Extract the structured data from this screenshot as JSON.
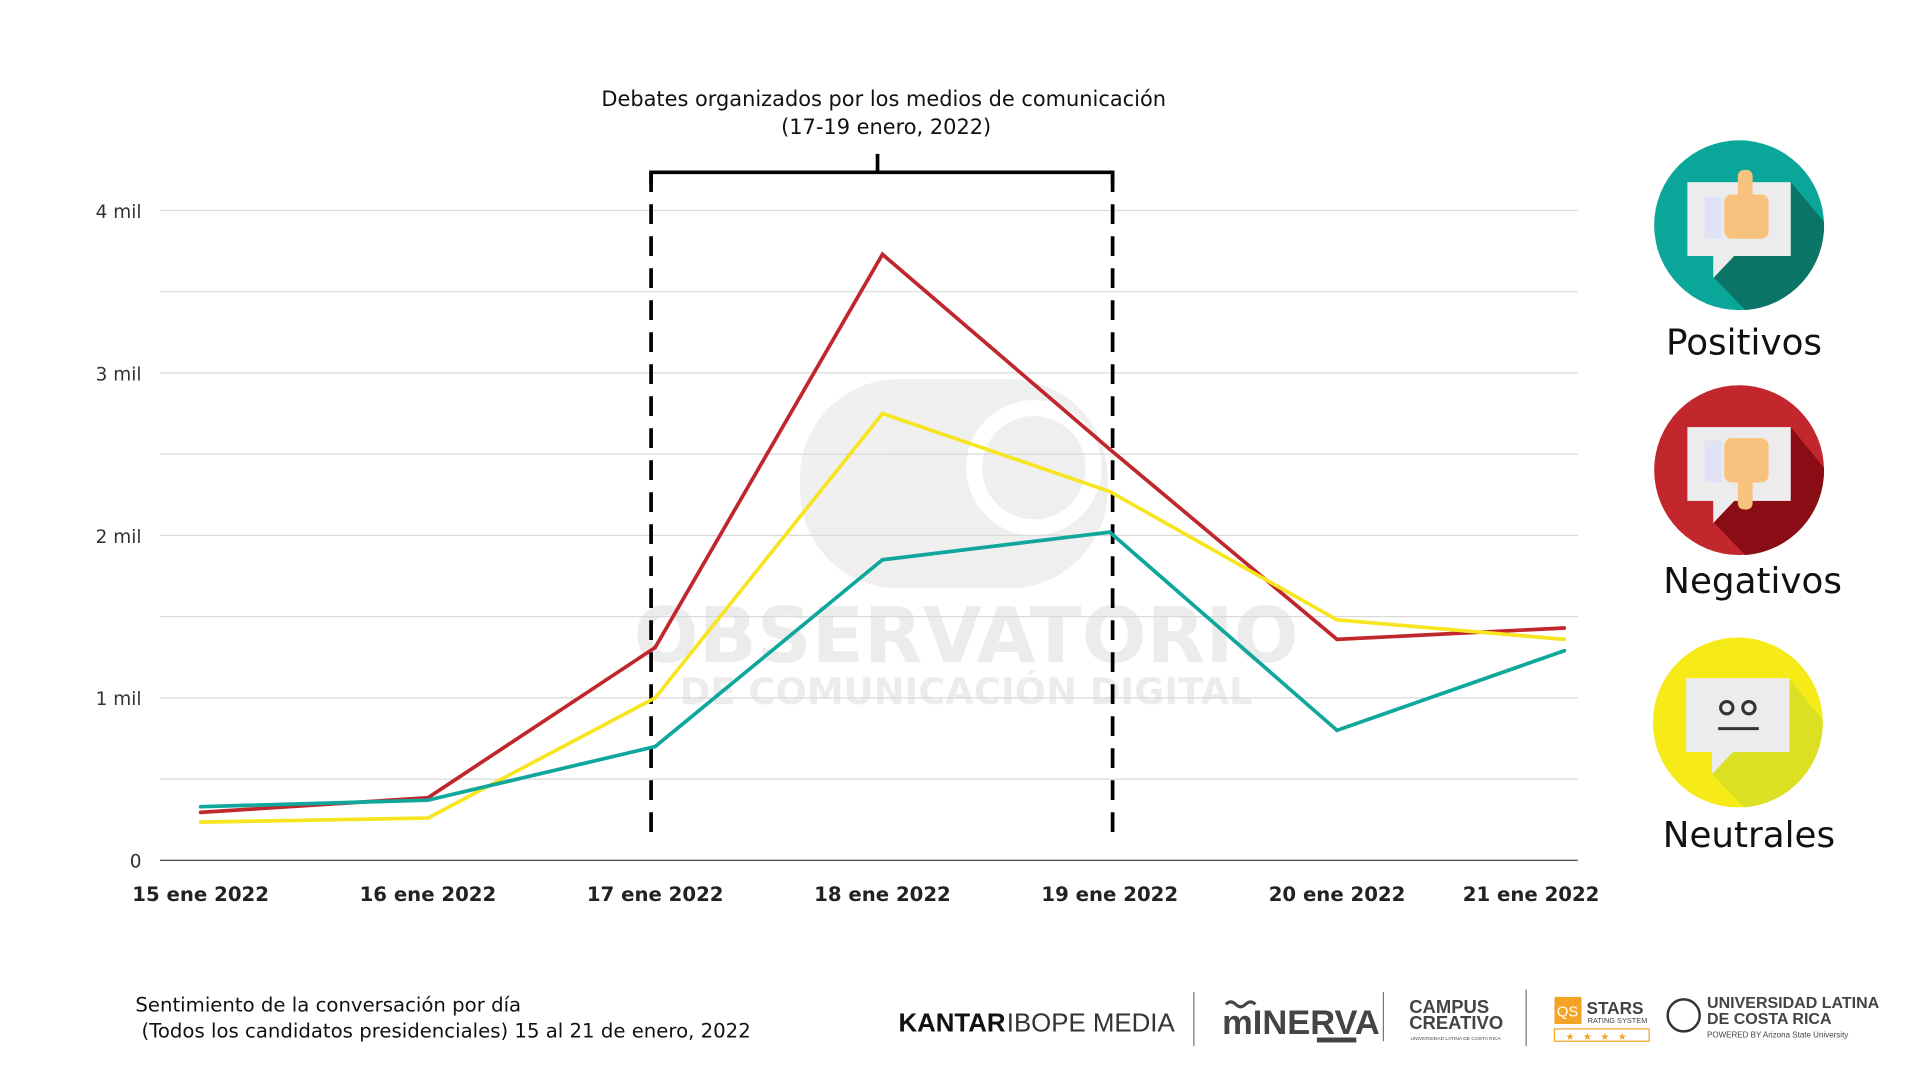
{
  "chart_data": {
    "type": "line",
    "title": "Sentimiento de la conversación por día",
    "subtitle": "(Todos los candidatos presidenciales) 15 al 21 de enero, 2022",
    "xlabel": "",
    "ylabel": "",
    "categories": [
      "15 ene 2022",
      "16 ene 2022",
      "17 ene 2022",
      "18 ene 2022",
      "19 ene 2022",
      "20 ene 2022",
      "21 ene 2022"
    ],
    "ylim": [
      0,
      4000
    ],
    "yticks": [
      {
        "value": 0,
        "label": "0"
      },
      {
        "value": 1000,
        "label": "1 mil"
      },
      {
        "value": 2000,
        "label": "2 mil"
      },
      {
        "value": 3000,
        "label": "3 mil"
      },
      {
        "value": 4000,
        "label": "4 mil"
      }
    ],
    "grid": true,
    "series": [
      {
        "name": "Negativos",
        "color": "#c0272d",
        "values": [
          295,
          385,
          1310,
          3730,
          2530,
          1360,
          1430
        ]
      },
      {
        "name": "Neutrales",
        "color": "#f7e521",
        "values": [
          235,
          260,
          1000,
          2750,
          2270,
          1480,
          1360
        ]
      },
      {
        "name": "Positivos",
        "color": "#0fa79c",
        "values": [
          330,
          370,
          700,
          1850,
          2020,
          800,
          1290
        ]
      }
    ],
    "annotation": {
      "line1": "Debates organizados por los medios de comunicación",
      "line2": "(17-19 enero, 2022)",
      "range": [
        "17 ene 2022",
        "19 ene 2022"
      ]
    },
    "legend": {
      "placement": "right",
      "items": [
        {
          "label": "Positivos",
          "icon": "thumbs-up-icon",
          "color": "#0aa69a",
          "shade": "#0a7467"
        },
        {
          "label": "Negativos",
          "icon": "thumbs-down-icon",
          "color": "#c1272d",
          "shade": "#8a0c14"
        },
        {
          "label": "Neutrales",
          "icon": "neutral-face-icon",
          "color": "#f6ea17",
          "shade": "#dbe023"
        }
      ]
    },
    "watermark": {
      "line1": "OBSERVATORIO",
      "line2": "DE COMUNICACIÓN DIGITAL"
    }
  },
  "footer": {
    "caption_line1": "Sentimiento de la conversación por día",
    "caption_line2": "(Todos los candidatos presidenciales) 15 al 21 de enero, 2022",
    "logos": {
      "kantar_bold": "KANTAR",
      "kantar_light": "IBOPE MEDIA",
      "minerva": "mINERVA",
      "campus1": "CAMPUS",
      "campus2": "CREATIVO",
      "campus3": "UNIVERSIDAD LATINA DE COSTA RICA",
      "qs": "QS",
      "stars": "STARS",
      "stars_sub": "RATING SYSTEM",
      "ulatina1": "UNIVERSIDAD LATINA",
      "ulatina2": "DE COSTA RICA",
      "ulatina3": "POWERED BY Arizona State University"
    }
  }
}
